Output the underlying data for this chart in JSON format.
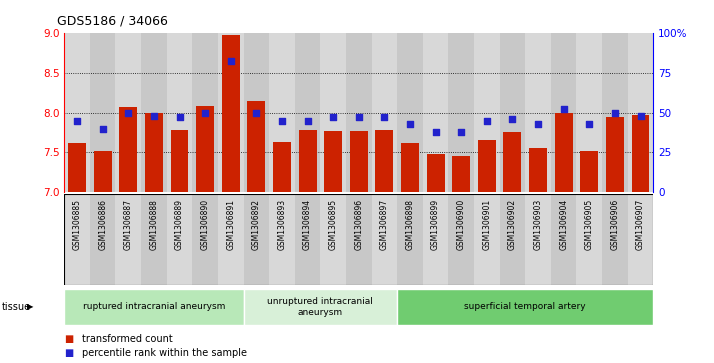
{
  "title": "GDS5186 / 34066",
  "samples": [
    "GSM1306885",
    "GSM1306886",
    "GSM1306887",
    "GSM1306888",
    "GSM1306889",
    "GSM1306890",
    "GSM1306891",
    "GSM1306892",
    "GSM1306893",
    "GSM1306894",
    "GSM1306895",
    "GSM1306896",
    "GSM1306897",
    "GSM1306898",
    "GSM1306899",
    "GSM1306900",
    "GSM1306901",
    "GSM1306902",
    "GSM1306903",
    "GSM1306904",
    "GSM1306905",
    "GSM1306906",
    "GSM1306907"
  ],
  "bar_values": [
    7.62,
    7.52,
    8.07,
    8.0,
    7.78,
    8.08,
    8.97,
    8.14,
    7.63,
    7.78,
    7.77,
    7.77,
    7.78,
    7.62,
    7.48,
    7.46,
    7.66,
    7.75,
    7.55,
    8.0,
    7.52,
    7.95,
    7.97
  ],
  "percentile_values": [
    45,
    40,
    50,
    48,
    47,
    50,
    82,
    50,
    45,
    45,
    47,
    47,
    47,
    43,
    38,
    38,
    45,
    46,
    43,
    52,
    43,
    50,
    48
  ],
  "groups": [
    {
      "label": "ruptured intracranial aneurysm",
      "start": 0,
      "end": 7,
      "color": "#b8e8b8"
    },
    {
      "label": "unruptured intracranial\naneurysm",
      "start": 7,
      "end": 13,
      "color": "#d8f0d8"
    },
    {
      "label": "superficial temporal artery",
      "start": 13,
      "end": 23,
      "color": "#70cc70"
    }
  ],
  "bar_color": "#cc2200",
  "dot_color": "#2222cc",
  "ylim_left": [
    7.0,
    9.0
  ],
  "ylim_right": [
    0,
    100
  ],
  "yticks_left": [
    7.0,
    7.5,
    8.0,
    8.5,
    9.0
  ],
  "yticks_right": [
    0,
    25,
    50,
    75,
    100
  ],
  "ytick_labels_right": [
    "0",
    "25",
    "50",
    "75",
    "100%"
  ],
  "grid_values": [
    7.5,
    8.0,
    8.5
  ],
  "legend_bar_label": "transformed count",
  "legend_dot_label": "percentile rank within the sample",
  "tissue_label": "tissue",
  "col_colors": [
    "#d8d8d8",
    "#c8c8c8"
  ]
}
